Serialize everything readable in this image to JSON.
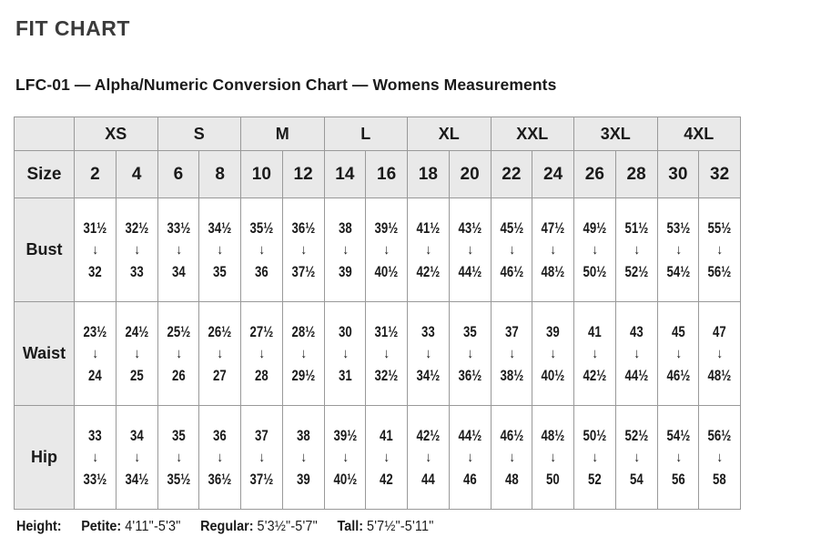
{
  "page": {
    "title": "FIT CHART",
    "subtitle": "LFC-01 — Alpha/Numeric Conversion Chart — Womens Measurements"
  },
  "chart_data": {
    "type": "table",
    "title": "LFC-01 — Alpha/Numeric Conversion Chart — Womens Measurements",
    "corner_label": "",
    "size_row_header": "Size",
    "alpha_sizes": [
      {
        "label": "XS",
        "span": 2
      },
      {
        "label": "S",
        "span": 2
      },
      {
        "label": "M",
        "span": 2
      },
      {
        "label": "L",
        "span": 2
      },
      {
        "label": "XL",
        "span": 2
      },
      {
        "label": "XXL",
        "span": 2
      },
      {
        "label": "3XL",
        "span": 2
      },
      {
        "label": "4XL",
        "span": 2
      }
    ],
    "numeric_sizes": [
      "2",
      "4",
      "6",
      "8",
      "10",
      "12",
      "14",
      "16",
      "18",
      "20",
      "22",
      "24",
      "26",
      "28",
      "30",
      "32"
    ],
    "arrow_icon": "↓",
    "rows": [
      {
        "label": "Bust",
        "cells": [
          {
            "from": "31½",
            "to": "32"
          },
          {
            "from": "32½",
            "to": "33"
          },
          {
            "from": "33½",
            "to": "34"
          },
          {
            "from": "34½",
            "to": "35"
          },
          {
            "from": "35½",
            "to": "36"
          },
          {
            "from": "36½",
            "to": "37½"
          },
          {
            "from": "38",
            "to": "39"
          },
          {
            "from": "39½",
            "to": "40½"
          },
          {
            "from": "41½",
            "to": "42½"
          },
          {
            "from": "43½",
            "to": "44½"
          },
          {
            "from": "45½",
            "to": "46½"
          },
          {
            "from": "47½",
            "to": "48½"
          },
          {
            "from": "49½",
            "to": "50½"
          },
          {
            "from": "51½",
            "to": "52½"
          },
          {
            "from": "53½",
            "to": "54½"
          },
          {
            "from": "55½",
            "to": "56½"
          }
        ]
      },
      {
        "label": "Waist",
        "cells": [
          {
            "from": "23½",
            "to": "24"
          },
          {
            "from": "24½",
            "to": "25"
          },
          {
            "from": "25½",
            "to": "26"
          },
          {
            "from": "26½",
            "to": "27"
          },
          {
            "from": "27½",
            "to": "28"
          },
          {
            "from": "28½",
            "to": "29½"
          },
          {
            "from": "30",
            "to": "31"
          },
          {
            "from": "31½",
            "to": "32½"
          },
          {
            "from": "33",
            "to": "34½"
          },
          {
            "from": "35",
            "to": "36½"
          },
          {
            "from": "37",
            "to": "38½"
          },
          {
            "from": "39",
            "to": "40½"
          },
          {
            "from": "41",
            "to": "42½"
          },
          {
            "from": "43",
            "to": "44½"
          },
          {
            "from": "45",
            "to": "46½"
          },
          {
            "from": "47",
            "to": "48½"
          }
        ]
      },
      {
        "label": "Hip",
        "cells": [
          {
            "from": "33",
            "to": "33½"
          },
          {
            "from": "34",
            "to": "34½"
          },
          {
            "from": "35",
            "to": "35½"
          },
          {
            "from": "36",
            "to": "36½"
          },
          {
            "from": "37",
            "to": "37½"
          },
          {
            "from": "38",
            "to": "39"
          },
          {
            "from": "39½",
            "to": "40½"
          },
          {
            "from": "41",
            "to": "42"
          },
          {
            "from": "42½",
            "to": "44"
          },
          {
            "from": "44½",
            "to": "46"
          },
          {
            "from": "46½",
            "to": "48"
          },
          {
            "from": "48½",
            "to": "50"
          },
          {
            "from": "50½",
            "to": "52"
          },
          {
            "from": "52½",
            "to": "54"
          },
          {
            "from": "54½",
            "to": "56"
          },
          {
            "from": "56½",
            "to": "58"
          }
        ]
      }
    ]
  },
  "footer": {
    "height_label": "Height:",
    "segments": [
      {
        "label": "Petite:",
        "value": "4'11\"-5'3\""
      },
      {
        "label": "Regular:",
        "value": "5'3½\"-5'7\""
      },
      {
        "label": "Tall:",
        "value": "5'7½\"-5'11\""
      }
    ]
  },
  "colors": {
    "header_bg": "#e9e9e9",
    "border": "#999999",
    "text": "#1a1a1a",
    "title": "#3b3b3b"
  }
}
